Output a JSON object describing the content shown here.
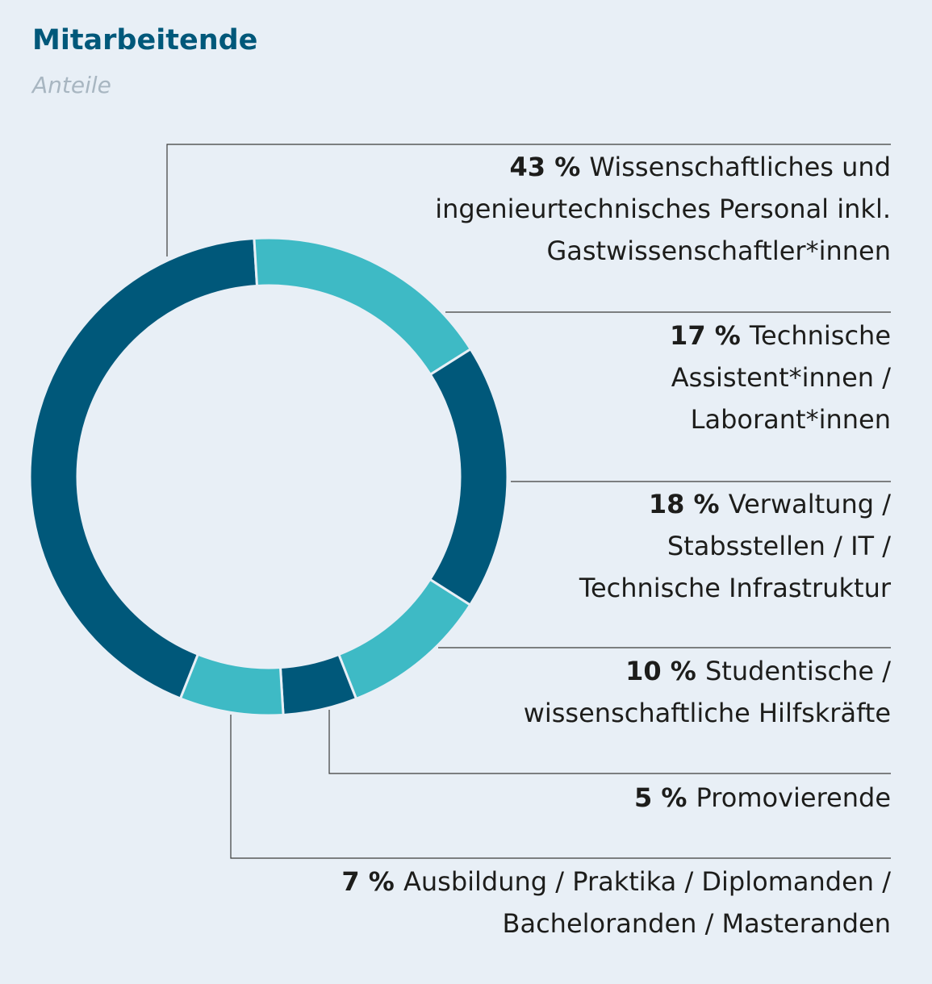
{
  "title": "Mitarbeitende",
  "subtitle": "Anteile",
  "colors": {
    "dark": "#00587a",
    "light": "#3ebac5",
    "title": "#00587a",
    "subtitle": "#a8b6c1"
  },
  "chart_data": {
    "type": "pie",
    "style": "donut",
    "title": "Mitarbeitende",
    "subtitle": "Anteile",
    "slices": [
      {
        "pct_label": "43 %",
        "value": 43,
        "color": "#00587a",
        "lines": [
          "Wissenschaftliches und",
          "ingenieurtechnisches Personal inkl.",
          "Gastwissenschaftler*innen"
        ]
      },
      {
        "pct_label": "17 %",
        "value": 17,
        "color": "#3ebac5",
        "lines": [
          "Technische",
          "Assistent*innen /",
          "Laborant*innen"
        ]
      },
      {
        "pct_label": "18 %",
        "value": 18,
        "color": "#00587a",
        "lines": [
          "Verwaltung /",
          "Stabsstellen / IT /",
          "Technische Infrastruktur"
        ]
      },
      {
        "pct_label": "10 %",
        "value": 10,
        "color": "#3ebac5",
        "lines": [
          "Studentische /",
          "wissenschaftliche Hilfskräfte"
        ]
      },
      {
        "pct_label": "5 %",
        "value": 5,
        "color": "#00587a",
        "lines": [
          "Promovierende"
        ]
      },
      {
        "pct_label": "7 %",
        "value": 7,
        "color": "#3ebac5",
        "lines": [
          "Ausbildung / Praktika / Diplomanden /",
          "Bacheloranden / Masteranden"
        ]
      }
    ]
  }
}
